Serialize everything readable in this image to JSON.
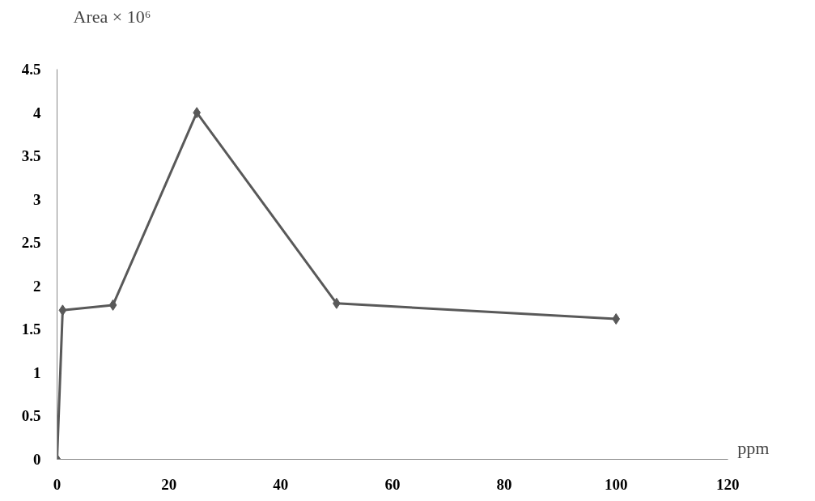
{
  "chart_data": {
    "type": "line",
    "xlabel": "ppm",
    "ylabel": "Area × 10⁶",
    "x": [
      0,
      1,
      10,
      25,
      50,
      100
    ],
    "series": [
      {
        "color": "#595959",
        "values": [
          0,
          1.72,
          1.78,
          4.0,
          1.8,
          1.62
        ]
      }
    ],
    "xlim": [
      0,
      120
    ],
    "xticks": [
      0,
      20,
      40,
      60,
      80,
      100,
      120
    ],
    "ylim": [
      0,
      4.5
    ],
    "yticks": [
      0,
      0.5,
      1,
      1.5,
      2,
      2.5,
      3,
      3.5,
      4,
      4.5
    ],
    "grid": false,
    "marker": "diamond",
    "line_style": "solid"
  }
}
